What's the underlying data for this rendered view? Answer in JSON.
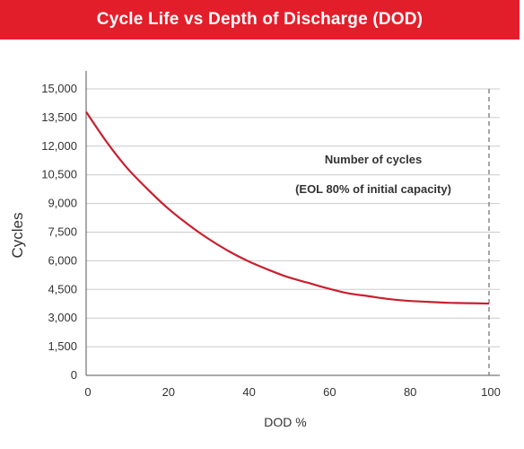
{
  "title": "Cycle Life vs Depth of Discharge (DOD)",
  "colors": {
    "banner": "#e31e2b",
    "curve": "#c8202f",
    "grid": "#cccccc",
    "axis": "#555555",
    "marker": "#777777"
  },
  "chart_data": {
    "type": "line",
    "title": "Cycle Life vs Depth of Discharge (DOD)",
    "xlabel": "DOD %",
    "ylabel": "Cycles",
    "xlim": [
      0,
      100
    ],
    "ylim": [
      0,
      15000
    ],
    "x_ticks": [
      0,
      20,
      40,
      60,
      80,
      100
    ],
    "x_tick_labels": [
      "0",
      "20",
      "40",
      "60",
      "80",
      "100"
    ],
    "y_ticks": [
      0,
      1500,
      3000,
      4500,
      6000,
      7500,
      9000,
      10500,
      12000,
      13500,
      15000
    ],
    "y_tick_labels": [
      "0",
      "1,500",
      "3,000",
      "4,500",
      "6,000",
      "7,500",
      "9,000",
      "10,500",
      "12,000",
      "13,500",
      "15,000"
    ],
    "grid": "horizontal",
    "series": [
      {
        "name": "",
        "x": [
          0,
          5,
          10,
          15,
          20,
          25,
          30,
          35,
          40,
          45,
          50,
          55,
          60,
          65,
          70,
          75,
          80,
          85,
          90,
          95,
          100
        ],
        "y": [
          13800,
          12250,
          10900,
          9800,
          8800,
          7950,
          7200,
          6550,
          6000,
          5550,
          5150,
          4850,
          4550,
          4300,
          4150,
          4000,
          3900,
          3850,
          3800,
          3780,
          3760
        ]
      }
    ],
    "reference_line": {
      "x": 100,
      "style": "dashed"
    },
    "annotations": [
      "Number of cycles",
      "(EOL 80% of initial capacity)"
    ]
  }
}
